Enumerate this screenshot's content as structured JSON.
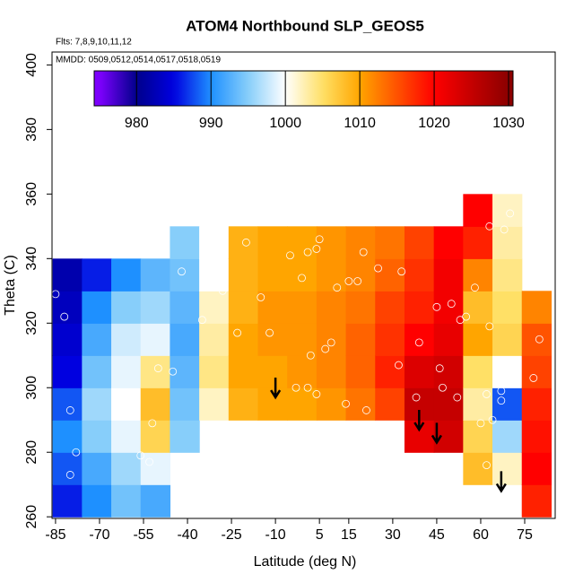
{
  "chart_data": {
    "type": "heatmap",
    "title": "ATOM4 Northbound SLP_GEOS5",
    "subtitle": "Flts: 7,8,9,10,11,12",
    "annotation": "MMDD: 0509,0512,0514,0517,0518,0519",
    "xlabel": "Latitude (deg N)",
    "ylabel": "Theta (C)",
    "xlim": [
      -86.2,
      85.4
    ],
    "ylim": [
      259.5,
      404
    ],
    "xticks": [
      -85,
      -70,
      -55,
      -40,
      -25,
      -10,
      5,
      15,
      30,
      45,
      60,
      75
    ],
    "yticks": [
      260,
      280,
      300,
      320,
      340,
      360,
      380,
      400
    ],
    "x": [
      -81,
      -71,
      -61,
      -51,
      -41,
      -31,
      -21,
      -11,
      -1,
      9,
      19,
      29,
      39,
      49,
      59,
      69,
      79
    ],
    "y": [
      265,
      275,
      285,
      295,
      305,
      315,
      325,
      335,
      345,
      355
    ],
    "z": [
      [
        986,
        988,
        990,
        988,
        985,
        984,
        983,
        982,
        null,
        null
      ],
      [
        990,
        992,
        995,
        996,
        994,
        992,
        990,
        986,
        null,
        null
      ],
      [
        994,
        996,
        999,
        1000,
        999,
        998,
        995,
        990,
        null,
        null
      ],
      [
        992,
        999,
        1006,
        1008,
        1004,
        999,
        996,
        993,
        null,
        null
      ],
      [
        null,
        null,
        995,
        994,
        993,
        992,
        993,
        994,
        995,
        null
      ],
      [
        null,
        null,
        null,
        1002,
        1004,
        1003,
        1002,
        1000,
        1000,
        null
      ],
      [
        null,
        null,
        null,
        1009,
        1010,
        1010,
        1009,
        1009,
        1009,
        null
      ],
      [
        null,
        null,
        null,
        1010,
        1010,
        1011,
        1011,
        1010,
        1010,
        null
      ],
      [
        null,
        null,
        null,
        1010,
        1011,
        1011,
        1011,
        1010,
        1010,
        null
      ],
      [
        null,
        null,
        null,
        1011,
        1012,
        1012,
        1012,
        1011,
        1011,
        null
      ],
      [
        null,
        null,
        null,
        1013,
        1014,
        1014,
        1013,
        1012,
        1012,
        null
      ],
      [
        null,
        null,
        null,
        1016,
        1018,
        1017,
        1016,
        1014,
        1013,
        null
      ],
      [
        null,
        null,
        1022,
        1025,
        1023,
        1020,
        1018,
        1017,
        1016,
        null
      ],
      [
        null,
        null,
        1024,
        1025,
        1024,
        1022,
        1021,
        1021,
        1020,
        null
      ],
      [
        null,
        1008,
        1006,
        1003,
        1005,
        1010,
        1008,
        1012,
        1018,
        1020
      ],
      [
        null,
        1002,
        996,
        988,
        1000,
        1006,
        1005,
        1004,
        1003,
        1002
      ],
      [
        1018,
        1020,
        1019,
        1018,
        1016,
        1015,
        1012,
        null,
        null,
        null
      ]
    ],
    "zlim": [
      974.3,
      1030.6
    ],
    "zticks": [
      980,
      990,
      1000,
      1010,
      1020,
      1030
    ],
    "colorscale": [
      [
        975,
        "#7f00ff"
      ],
      [
        980,
        "#00008b"
      ],
      [
        985,
        "#0000e0"
      ],
      [
        990,
        "#1e90ff"
      ],
      [
        995,
        "#87cefa"
      ],
      [
        1000,
        "#ffffff"
      ],
      [
        1005,
        "#ffe066"
      ],
      [
        1010,
        "#ffa500"
      ],
      [
        1020,
        "#ff0000"
      ],
      [
        1030,
        "#8b0000"
      ]
    ],
    "points": {
      "x": [
        -85,
        -82,
        -78,
        -80,
        -80,
        -56,
        -53,
        -50,
        -52,
        -45,
        -42,
        -35,
        -30,
        -28,
        -23,
        -20,
        -12,
        -15,
        -5,
        -1,
        1,
        4,
        5,
        -3,
        1,
        4,
        2,
        7,
        9,
        11,
        15,
        18,
        20,
        25,
        32,
        38,
        45,
        46,
        47,
        50,
        52,
        53,
        55,
        58,
        62,
        63,
        62,
        64,
        67,
        67,
        63,
        68,
        60,
        70,
        78,
        80,
        14,
        21,
        33,
        39
      ],
      "y": [
        329,
        322,
        280,
        293,
        273,
        279,
        277,
        306,
        289,
        305,
        336,
        321,
        336,
        330,
        317,
        345,
        317,
        328,
        341,
        334,
        342,
        343,
        346,
        300,
        300,
        298,
        310,
        312,
        314,
        331,
        333,
        333,
        342,
        337,
        307,
        297,
        325,
        306,
        300,
        326,
        297,
        321,
        322,
        331,
        298,
        319,
        276,
        290,
        296,
        299,
        350,
        349,
        289,
        354,
        303,
        315,
        295,
        293,
        336,
        314
      ]
    },
    "arrows": {
      "x": [
        -10,
        39,
        45,
        67
      ],
      "y": [
        297,
        287,
        283,
        268
      ]
    }
  }
}
